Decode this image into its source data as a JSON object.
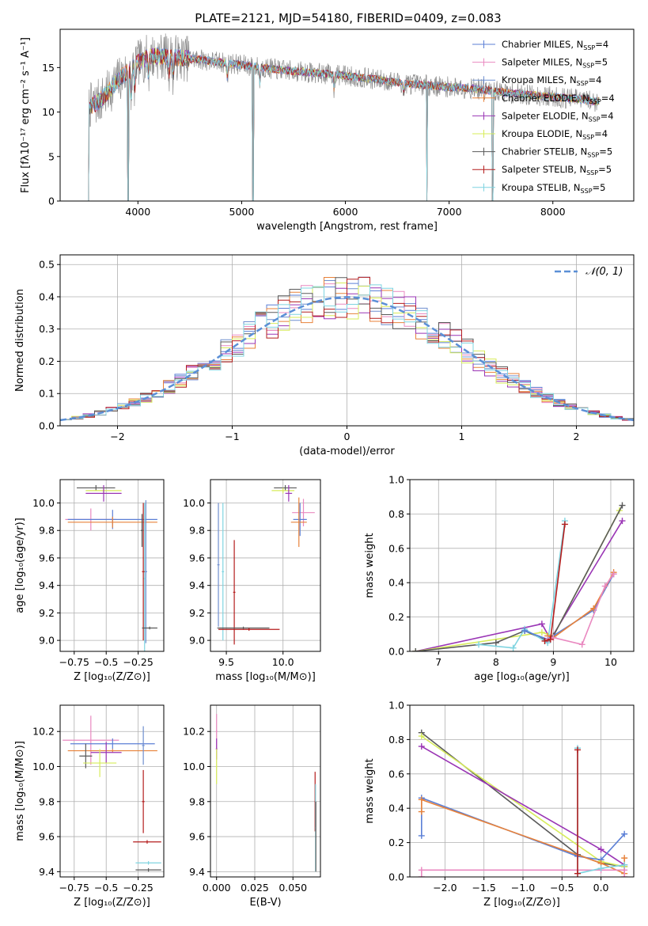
{
  "figure_title": "PLATE=2121, MJD=54180, FIBERID=0409, z=0.083",
  "colors": {
    "chabrier_miles": "#5b7fd6",
    "salpeter_miles": "#e989c0",
    "kroupa_miles": "#6f8fcf",
    "chabrier_elodie": "#e8823a",
    "salpeter_elodie": "#9a35b5",
    "kroupa_elodie": "#d7ec5a",
    "chabrier_stelib": "#5a5a5a",
    "salpeter_stelib": "#b41d1d",
    "kroupa_stelib": "#7fd4e0",
    "data": "#8c8c8c",
    "normal": "#5b8fd6"
  },
  "legend": [
    {
      "label": "Chabrier MILES, N",
      "sub": "SSP",
      "suffix": "=4",
      "color": "#5b7fd6"
    },
    {
      "label": "Salpeter MILES, N",
      "sub": "SSP",
      "suffix": "=5",
      "color": "#e989c0"
    },
    {
      "label": "Kroupa MILES, N",
      "sub": "SSP",
      "suffix": "=4",
      "color": "#6f8fcf"
    },
    {
      "label": "Chabrier ELODIE, N",
      "sub": "SSP",
      "suffix": "=4",
      "color": "#e8823a"
    },
    {
      "label": "Salpeter ELODIE, N",
      "sub": "SSP",
      "suffix": "=4",
      "color": "#9a35b5"
    },
    {
      "label": "Kroupa ELODIE, N",
      "sub": "SSP",
      "suffix": "=4",
      "color": "#d7ec5a"
    },
    {
      "label": "Chabrier STELIB, N",
      "sub": "SSP",
      "suffix": "=5",
      "color": "#5a5a5a"
    },
    {
      "label": "Salpeter STELIB, N",
      "sub": "SSP",
      "suffix": "=5",
      "color": "#b41d1d"
    },
    {
      "label": "Kroupa STELIB, N",
      "sub": "SSP",
      "suffix": "=5",
      "color": "#7fd4e0"
    }
  ],
  "chart_data": [
    {
      "id": "spectrum",
      "type": "line",
      "xlabel": "wavelength [Angstrom, rest frame]",
      "ylabel": "Flux [fλ10⁻¹⁷ erg cm⁻² s⁻¹ A⁻¹]",
      "xlim": [
        3250,
        8780
      ],
      "ylim": [
        0,
        19.3
      ],
      "xticks": [
        4000,
        5000,
        6000,
        7000,
        8000
      ],
      "yticks": [
        0,
        5,
        10,
        15
      ],
      "continuum": {
        "x": [
          3500,
          3600,
          3700,
          3800,
          3900,
          4000,
          4100,
          4200,
          4400,
          4600,
          4800,
          5000,
          5200,
          5400,
          5600,
          5800,
          6000,
          6200,
          6400,
          6600,
          6800,
          7000,
          7200,
          7400,
          7600,
          7800,
          8000,
          8200,
          8400
        ],
        "y": [
          10.5,
          11.0,
          12.0,
          13.5,
          14.5,
          15.5,
          16.2,
          16.3,
          16.1,
          15.9,
          15.6,
          15.3,
          15.0,
          14.7,
          14.5,
          14.3,
          14.1,
          13.8,
          13.5,
          13.2,
          13.0,
          12.8,
          12.7,
          12.4,
          12.1,
          11.9,
          11.7,
          11.5,
          11.2
        ]
      },
      "masked_gaps": [
        3520,
        3905,
        5110,
        6785,
        7420
      ]
    },
    {
      "id": "residuals",
      "type": "histogram",
      "xlabel": "(data-model)/error",
      "ylabel": "Normed distribution",
      "xlim": [
        -2.5,
        2.5
      ],
      "ylim": [
        0,
        0.53
      ],
      "xticks": [
        -2,
        -1,
        0,
        1,
        2
      ],
      "yticks": [
        0.0,
        0.1,
        0.2,
        0.3,
        0.4,
        0.5
      ],
      "reference_label": "𝒩(0, 1)",
      "bin_width": 0.1
    },
    {
      "id": "age_vs_Z",
      "type": "errorbar",
      "xlabel": "Z [log₁₀(Z/Z⊙)]",
      "ylabel": "age  [log₁₀(age/yr)]",
      "xlim": [
        -0.86,
        -0.05
      ],
      "ylim": [
        8.92,
        10.17
      ],
      "xticks": [
        -0.75,
        -0.5,
        -0.25
      ],
      "yticks": [
        9.0,
        9.2,
        9.4,
        9.6,
        9.8,
        10.0
      ],
      "points": [
        {
          "s": "chabrier_stelib",
          "x": -0.58,
          "y": 10.11,
          "xerr": 0.15,
          "yerr": 0.02
        },
        {
          "s": "kroupa_elodie",
          "x": -0.52,
          "y": 10.09,
          "xerr": 0.14,
          "yerr": 0.02
        },
        {
          "s": "salpeter_elodie",
          "x": -0.52,
          "y": 10.07,
          "xerr": 0.14,
          "yerr": 0.06
        },
        {
          "s": "salpeter_miles",
          "x": -0.62,
          "y": 9.88,
          "xerr": 0.2,
          "yerr": 0.08
        },
        {
          "s": "chabrier_miles",
          "x": -0.45,
          "y": 9.88,
          "xerr": 0.35,
          "yerr": 0.07
        },
        {
          "s": "chabrier_elodie",
          "x": -0.45,
          "y": 9.86,
          "xerr": 0.35,
          "yerr": 0.04
        },
        {
          "s": "kroupa_miles",
          "x": -0.19,
          "y": 9.5,
          "xerr": 0.01,
          "yerr": 0.52
        },
        {
          "s": "kroupa_stelib",
          "x": -0.2,
          "y": 9.45,
          "xerr": 0.01,
          "yerr": 0.55
        },
        {
          "s": "salpeter_stelib",
          "x": -0.21,
          "y": 9.5,
          "xerr": 0.01,
          "yerr": 0.5
        },
        {
          "s": "chabrier_stelib",
          "x": -0.16,
          "y": 9.09,
          "xerr": 0.06,
          "yerr": 0.01
        },
        {
          "s": "chabrier_stelib",
          "x": -0.22,
          "y": 9.8,
          "xerr": 0.01,
          "yerr": 0.12
        }
      ]
    },
    {
      "id": "age_vs_mass",
      "type": "errorbar",
      "xlabel": "mass [log₁₀(M/M⊙)]",
      "ylabel": "",
      "xlim": [
        9.36,
        10.33
      ],
      "ylim": [
        8.92,
        10.17
      ],
      "xticks": [
        9.5,
        10.0
      ],
      "yticks": [
        9.0,
        9.2,
        9.4,
        9.6,
        9.8,
        10.0
      ],
      "points": [
        {
          "s": "chabrier_stelib",
          "x": 10.02,
          "y": 10.11,
          "xerr": 0.1,
          "yerr": 0.02
        },
        {
          "s": "kroupa_elodie",
          "x": 10.0,
          "y": 10.09,
          "xerr": 0.1,
          "yerr": 0.02
        },
        {
          "s": "salpeter_elodie",
          "x": 10.05,
          "y": 10.07,
          "xerr": 0.03,
          "yerr": 0.06
        },
        {
          "s": "salpeter_miles",
          "x": 10.18,
          "y": 9.93,
          "xerr": 0.1,
          "yerr": 0.1
        },
        {
          "s": "chabrier_miles",
          "x": 10.15,
          "y": 9.88,
          "xerr": 0.06,
          "yerr": 0.12
        },
        {
          "s": "chabrier_elodie",
          "x": 10.14,
          "y": 9.86,
          "xerr": 0.07,
          "yerr": 0.18
        },
        {
          "s": "kroupa_miles",
          "x": 9.43,
          "y": 9.55,
          "xerr": 0.01,
          "yerr": 0.45
        },
        {
          "s": "kroupa_stelib",
          "x": 9.47,
          "y": 9.5,
          "xerr": 0.01,
          "yerr": 0.5
        },
        {
          "s": "salpeter_stelib",
          "x": 9.57,
          "y": 9.35,
          "xerr": 0.01,
          "yerr": 0.38
        },
        {
          "s": "chabrier_stelib",
          "x": 9.65,
          "y": 9.09,
          "xerr": 0.23,
          "yerr": 0.01
        },
        {
          "s": "salpeter_stelib",
          "x": 9.7,
          "y": 9.08,
          "xerr": 0.27,
          "yerr": 0.01
        }
      ]
    },
    {
      "id": "weight_vs_age",
      "type": "line",
      "xlabel": "age  [log₁₀(age/yr)]",
      "ylabel": "mass weight",
      "xlim": [
        6.5,
        10.4
      ],
      "ylim": [
        0,
        1.0
      ],
      "xticks": [
        7,
        8,
        9,
        10
      ],
      "yticks": [
        0.0,
        0.2,
        0.4,
        0.6,
        0.8,
        1.0
      ],
      "series": [
        {
          "s": "salpeter_elodie",
          "x": [
            6.6,
            8.8,
            8.95,
            10.2
          ],
          "y": [
            0.0,
            0.16,
            0.07,
            0.76
          ]
        },
        {
          "s": "kroupa_elodie",
          "x": [
            6.6,
            8.8,
            9.0,
            10.15
          ],
          "y": [
            0.0,
            0.11,
            0.09,
            0.82
          ]
        },
        {
          "s": "chabrier_stelib",
          "x": [
            6.6,
            8.0,
            8.5,
            8.9,
            9.0,
            10.2
          ],
          "y": [
            0.0,
            0.05,
            0.12,
            0.06,
            0.09,
            0.85
          ]
        },
        {
          "s": "kroupa_stelib",
          "x": [
            7.7,
            8.3,
            8.5,
            8.9,
            9.2
          ],
          "y": [
            0.04,
            0.02,
            0.13,
            0.05,
            0.76
          ]
        },
        {
          "s": "chabrier_miles",
          "x": [
            8.5,
            8.9,
            9.7,
            10.05
          ],
          "y": [
            0.12,
            0.07,
            0.24,
            0.45
          ]
        },
        {
          "s": "chabrier_elodie",
          "x": [
            8.9,
            9.0,
            9.7,
            10.05
          ],
          "y": [
            0.09,
            0.08,
            0.25,
            0.46
          ]
        },
        {
          "s": "salpeter_miles",
          "x": [
            8.9,
            9.0,
            9.5,
            9.9,
            10.05
          ],
          "y": [
            0.07,
            0.08,
            0.04,
            0.38,
            0.45
          ]
        },
        {
          "s": "salpeter_stelib",
          "x": [
            8.85,
            8.95,
            9.2
          ],
          "y": [
            0.06,
            0.07,
            0.74
          ]
        }
      ]
    },
    {
      "id": "mass_vs_Z",
      "type": "errorbar",
      "xlabel": "Z [log₁₀(Z/Z⊙)]",
      "ylabel": "mass [log₁₀(M/M⊙)]",
      "xlim": [
        -0.86,
        -0.05
      ],
      "ylim": [
        9.37,
        10.35
      ],
      "xticks": [
        -0.75,
        -0.5,
        -0.25
      ],
      "yticks": [
        9.4,
        9.6,
        9.8,
        10.0,
        10.2
      ],
      "points": [
        {
          "s": "salpeter_miles",
          "x": -0.62,
          "y": 10.15,
          "xerr": 0.22,
          "yerr": 0.14
        },
        {
          "s": "chabrier_miles",
          "x": -0.45,
          "y": 10.13,
          "xerr": 0.33,
          "yerr": 0.03
        },
        {
          "s": "chabrier_elodie",
          "x": -0.45,
          "y": 10.09,
          "xerr": 0.35,
          "yerr": 0.01
        },
        {
          "s": "salpeter_elodie",
          "x": -0.5,
          "y": 10.08,
          "xerr": 0.12,
          "yerr": 0.06
        },
        {
          "s": "chabrier_stelib",
          "x": -0.66,
          "y": 10.06,
          "xerr": 0.05,
          "yerr": 0.07
        },
        {
          "s": "kroupa_elodie",
          "x": -0.55,
          "y": 10.02,
          "xerr": 0.13,
          "yerr": 0.08
        },
        {
          "s": "kroupa_miles",
          "x": -0.21,
          "y": 10.12,
          "xerr": 0.01,
          "yerr": 0.11
        },
        {
          "s": "salpeter_stelib",
          "x": -0.21,
          "y": 9.8,
          "xerr": 0.01,
          "yerr": 0.18
        },
        {
          "s": "salpeter_stelib",
          "x": -0.18,
          "y": 9.57,
          "xerr": 0.11,
          "yerr": 0.01
        },
        {
          "s": "kroupa_stelib",
          "x": -0.17,
          "y": 9.45,
          "xerr": 0.1,
          "yerr": 0.01
        },
        {
          "s": "chabrier_stelib",
          "x": -0.17,
          "y": 9.41,
          "xerr": 0.1,
          "yerr": 0.01
        }
      ]
    },
    {
      "id": "mass_vs_ebv",
      "type": "errorbar",
      "xlabel": "E(B-V)",
      "ylabel": "",
      "xlim": [
        -0.004,
        0.068
      ],
      "ylim": [
        9.37,
        10.35
      ],
      "xticks": [
        0.0,
        0.025,
        0.05
      ],
      "yticks": [
        9.4,
        9.6,
        9.8,
        10.0,
        10.2
      ],
      "points": [
        {
          "s": "salpeter_miles",
          "x": 0.0,
          "y": 10.2,
          "xerr": 0.0005,
          "yerr": 0.1
        },
        {
          "s": "salpeter_elodie",
          "x": 0.0,
          "y": 10.1,
          "xerr": 0.0005,
          "yerr": 0.06
        },
        {
          "s": "kroupa_elodie",
          "x": 0.0,
          "y": 10.0,
          "xerr": 0.0005,
          "yerr": 0.1
        },
        {
          "s": "salpeter_stelib",
          "x": 0.0645,
          "y": 9.8,
          "xerr": 0.0003,
          "yerr": 0.17
        },
        {
          "s": "kroupa_stelib",
          "x": 0.0648,
          "y": 9.65,
          "xerr": 0.0003,
          "yerr": 0.25
        },
        {
          "s": "chabrier_stelib",
          "x": 0.065,
          "y": 9.6,
          "xerr": 0.0003,
          "yerr": 0.2
        }
      ]
    },
    {
      "id": "weight_vs_Z",
      "type": "line",
      "xlabel": "Z [log₁₀(Z/Z⊙)]",
      "ylabel": "mass weight",
      "xlim": [
        -2.45,
        0.42
      ],
      "ylim": [
        0,
        1.0
      ],
      "xticks": [
        -2.0,
        -1.5,
        -1.0,
        -0.5,
        0.0
      ],
      "yticks": [
        0.0,
        0.2,
        0.4,
        0.6,
        0.8,
        1.0
      ],
      "series": [
        {
          "s": "chabrier_stelib",
          "x": [
            -2.3,
            -0.3,
            0.0,
            0.3
          ],
          "y": [
            0.84,
            0.13,
            0.08,
            0.06
          ]
        },
        {
          "s": "kroupa_elodie",
          "x": [
            -2.3,
            0.0,
            0.3
          ],
          "y": [
            0.82,
            0.09,
            0.06
          ]
        },
        {
          "s": "salpeter_elodie",
          "x": [
            -2.3,
            0.0,
            0.3
          ],
          "y": [
            0.76,
            0.16,
            0.07
          ]
        },
        {
          "s": "chabrier_miles",
          "x": [
            -2.3,
            -2.3,
            -0.3,
            0.0,
            0.3
          ],
          "y": [
            0.24,
            0.46,
            0.12,
            0.1,
            0.25
          ]
        },
        {
          "s": "chabrier_elodie",
          "x": [
            -2.3,
            -2.3,
            0.0,
            0.3,
            0.3
          ],
          "y": [
            0.38,
            0.45,
            0.08,
            0.02,
            0.11
          ]
        },
        {
          "s": "salpeter_miles",
          "x": [
            -2.3,
            -2.3,
            0.0,
            0.3,
            0.3
          ],
          "y": [
            0.0,
            0.04,
            0.04,
            0.04,
            0.0
          ]
        },
        {
          "s": "kroupa_stelib",
          "x": [
            -0.3,
            -0.3,
            0.0,
            0.3
          ],
          "y": [
            0.75,
            0.02,
            0.05,
            0.07
          ]
        },
        {
          "s": "salpeter_stelib",
          "x": [
            -0.3,
            -0.3
          ],
          "y": [
            0.02,
            0.74
          ]
        }
      ]
    }
  ]
}
